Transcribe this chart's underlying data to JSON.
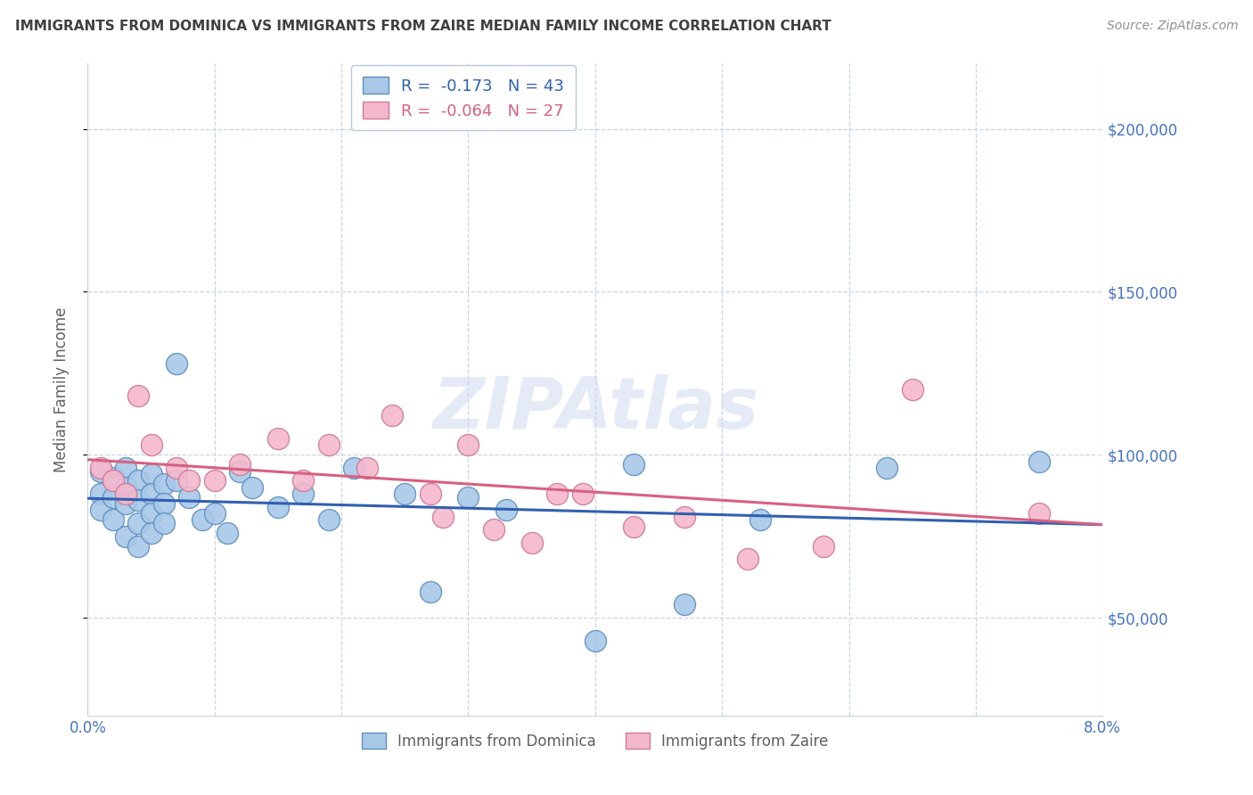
{
  "title": "IMMIGRANTS FROM DOMINICA VS IMMIGRANTS FROM ZAIRE MEDIAN FAMILY INCOME CORRELATION CHART",
  "source": "Source: ZipAtlas.com",
  "ylabel": "Median Family Income",
  "xlim": [
    0.0,
    0.08
  ],
  "ylim": [
    20000,
    220000
  ],
  "yticks": [
    50000,
    100000,
    150000,
    200000
  ],
  "ytick_labels": [
    "$50,000",
    "$100,000",
    "$150,000",
    "$200,000"
  ],
  "xtick_positions": [
    0.0,
    0.01,
    0.02,
    0.03,
    0.04,
    0.05,
    0.06,
    0.07,
    0.08
  ],
  "xtick_labels": [
    "0.0%",
    "",
    "",
    "",
    "",
    "",
    "",
    "",
    "8.0%"
  ],
  "dominica_x": [
    0.001,
    0.001,
    0.001,
    0.002,
    0.002,
    0.002,
    0.003,
    0.003,
    0.003,
    0.003,
    0.004,
    0.004,
    0.004,
    0.004,
    0.005,
    0.005,
    0.005,
    0.005,
    0.006,
    0.006,
    0.006,
    0.007,
    0.007,
    0.008,
    0.009,
    0.01,
    0.011,
    0.012,
    0.013,
    0.015,
    0.017,
    0.019,
    0.021,
    0.025,
    0.027,
    0.03,
    0.033,
    0.04,
    0.043,
    0.047,
    0.053,
    0.063,
    0.075
  ],
  "dominica_y": [
    95000,
    88000,
    83000,
    93000,
    87000,
    80000,
    96000,
    90000,
    85000,
    75000,
    92000,
    86000,
    79000,
    72000,
    94000,
    88000,
    82000,
    76000,
    91000,
    85000,
    79000,
    128000,
    92000,
    87000,
    80000,
    82000,
    76000,
    95000,
    90000,
    84000,
    88000,
    80000,
    96000,
    88000,
    58000,
    87000,
    83000,
    43000,
    97000,
    54000,
    80000,
    96000,
    98000
  ],
  "zaire_x": [
    0.001,
    0.002,
    0.003,
    0.004,
    0.005,
    0.007,
    0.008,
    0.01,
    0.012,
    0.015,
    0.017,
    0.019,
    0.022,
    0.024,
    0.027,
    0.028,
    0.03,
    0.032,
    0.035,
    0.037,
    0.039,
    0.043,
    0.047,
    0.052,
    0.058,
    0.065,
    0.075
  ],
  "zaire_y": [
    96000,
    92000,
    88000,
    118000,
    103000,
    96000,
    92000,
    92000,
    97000,
    105000,
    92000,
    103000,
    96000,
    112000,
    88000,
    81000,
    103000,
    77000,
    73000,
    88000,
    88000,
    78000,
    81000,
    68000,
    72000,
    120000,
    82000
  ],
  "dominica_color": "#a8c8e8",
  "dominica_edge": "#6090c0",
  "zaire_color": "#f4b8cc",
  "zaire_edge": "#d07898",
  "dominica_line_color": "#3060b0",
  "zaire_line_color": "#d86080",
  "watermark": "ZIPAtlas",
  "background_color": "#ffffff",
  "grid_color": "#c8d4e8",
  "title_color": "#404040",
  "source_color": "#909090",
  "axis_label_color": "#606060",
  "right_tick_color": "#4472c4",
  "bottom_label_color": "#606060"
}
